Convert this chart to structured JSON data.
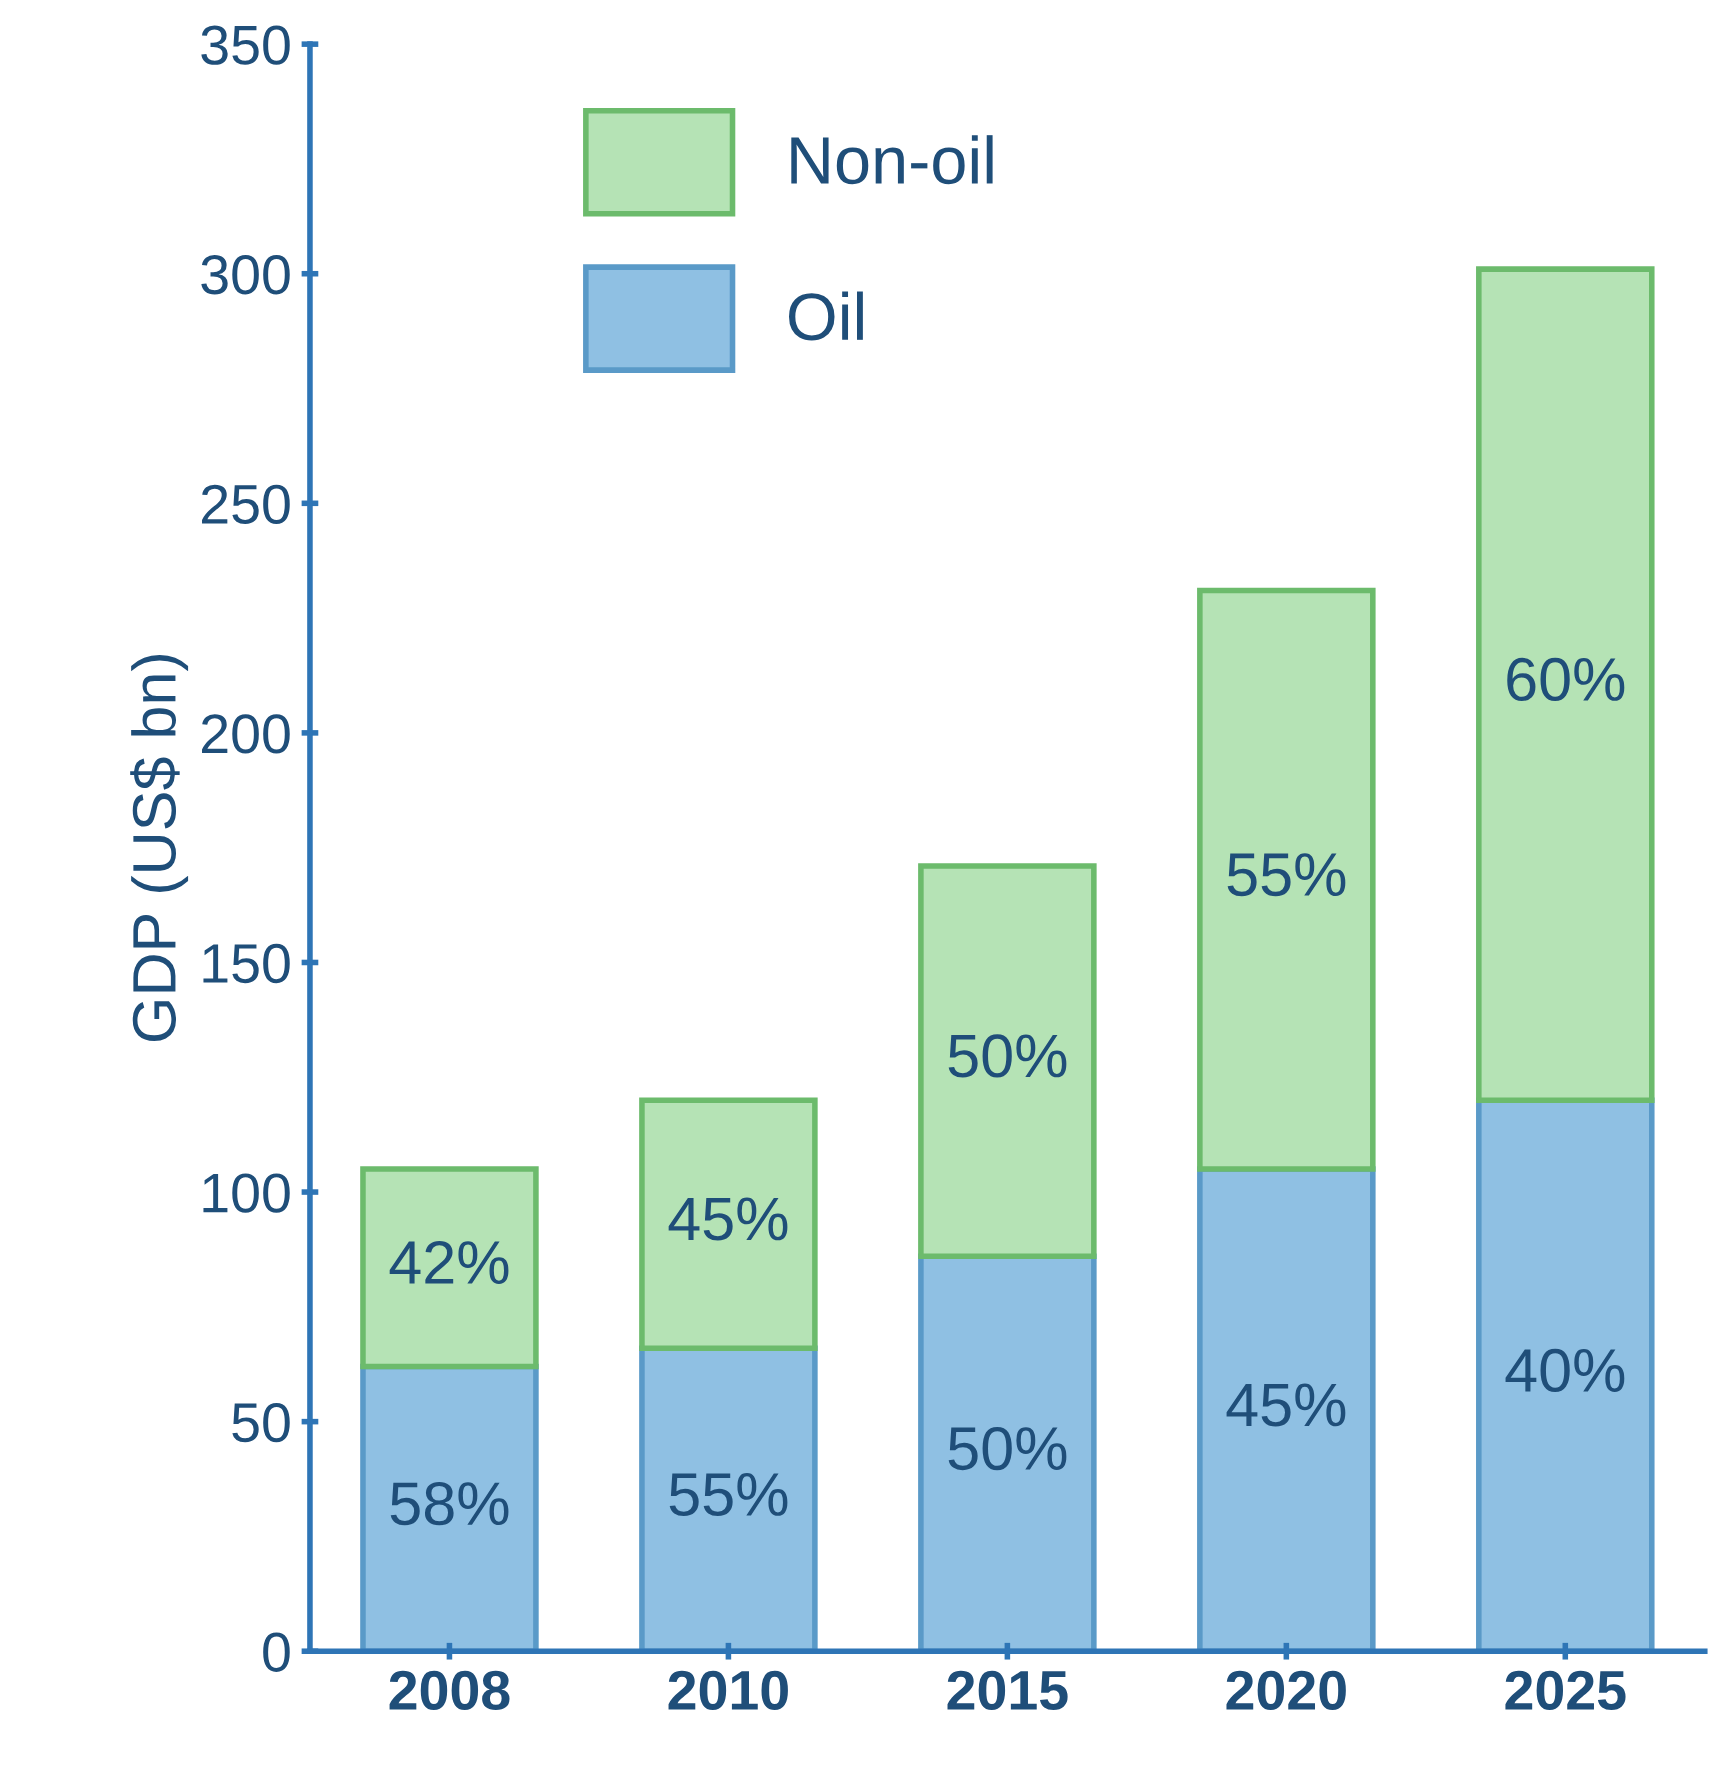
{
  "chart_data": {
    "type": "bar",
    "stacked": true,
    "ylabel": "GDP (US$ bn)",
    "categories": [
      "2008",
      "2010",
      "2015",
      "2020",
      "2025"
    ],
    "series": [
      {
        "name": "Oil",
        "color": "#8fc0e3",
        "values": [
          62,
          66,
          86,
          105,
          120
        ]
      },
      {
        "name": "Non-oil",
        "color": "#b5e3b5",
        "values": [
          43,
          54,
          85,
          126,
          181
        ]
      }
    ],
    "annotations": [
      "58%",
      "55%",
      "50%",
      "45%",
      "40%",
      "42%",
      "45%",
      "50%",
      "55%",
      "60%"
    ],
    "ylim": [
      0,
      350
    ],
    "yticks": [
      0,
      50,
      100,
      150,
      200,
      250,
      300,
      350
    ],
    "grid": false,
    "legend": "top left"
  }
}
